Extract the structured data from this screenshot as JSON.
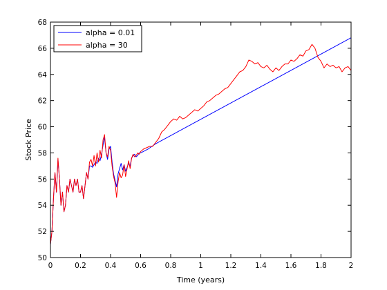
{
  "chart_data": {
    "type": "line",
    "title": "",
    "xlabel": "Time (years)",
    "ylabel": "Stock Price",
    "xlim": [
      0,
      2
    ],
    "ylim": [
      50,
      68
    ],
    "xticks": [
      0,
      0.2,
      0.4,
      0.6,
      0.8,
      1,
      1.2,
      1.4,
      1.6,
      1.8,
      2
    ],
    "xtick_labels": [
      "0",
      "0.2",
      "0.4",
      "0.6",
      "0.8",
      "1",
      "1.2",
      "1.4",
      "1.6",
      "1.8",
      "2"
    ],
    "yticks": [
      50,
      52,
      54,
      56,
      58,
      60,
      62,
      64,
      66,
      68
    ],
    "ytick_labels": [
      "50",
      "52",
      "54",
      "56",
      "58",
      "60",
      "62",
      "64",
      "66",
      "68"
    ],
    "grid": false,
    "legend_position": "top-left",
    "series": [
      {
        "name": "alpha = 0.01",
        "color": "#0000ff",
        "x": [
          0,
          0.005,
          0.01,
          0.02,
          0.03,
          0.04,
          0.05,
          0.06,
          0.07,
          0.08,
          0.09,
          0.1,
          0.11,
          0.12,
          0.13,
          0.14,
          0.15,
          0.16,
          0.17,
          0.18,
          0.19,
          0.2,
          0.21,
          0.22,
          0.23,
          0.24,
          0.25,
          0.26,
          0.27,
          0.28,
          0.29,
          0.3,
          0.31,
          0.32,
          0.33,
          0.34,
          0.35,
          0.36,
          0.37,
          0.38,
          0.39,
          0.4,
          0.41,
          0.42,
          0.43,
          0.44,
          0.45,
          0.46,
          0.47,
          0.48,
          0.49,
          0.5,
          0.51,
          0.52,
          0.53,
          0.54,
          0.55,
          0.56,
          0.57,
          0.58,
          0.59,
          0.6,
          0.65,
          0.7,
          2.0
        ],
        "y": [
          51.0,
          51.5,
          52.0,
          54.5,
          56.5,
          55.0,
          57.5,
          56.0,
          54.0,
          55.0,
          53.5,
          54.0,
          55.5,
          55.0,
          56.0,
          55.5,
          55.0,
          56.0,
          55.5,
          56.0,
          55.0,
          55.0,
          55.5,
          54.5,
          55.5,
          56.5,
          56.0,
          57.0,
          57.0,
          56.9,
          57.1,
          57.3,
          57.2,
          57.6,
          57.4,
          57.9,
          58.6,
          59.2,
          58.0,
          57.5,
          58.3,
          58.5,
          57.3,
          56.4,
          55.9,
          55.4,
          56.4,
          56.8,
          57.2,
          56.7,
          57.1,
          56.6,
          56.9,
          57.2,
          57.0,
          57.6,
          57.8,
          57.9,
          57.7,
          57.8,
          58.0,
          58.0,
          58.3,
          58.7,
          66.8
        ]
      },
      {
        "name": "alpha = 30",
        "color": "#ff0000",
        "x": [
          0,
          0.005,
          0.01,
          0.02,
          0.03,
          0.04,
          0.05,
          0.06,
          0.07,
          0.08,
          0.09,
          0.1,
          0.11,
          0.12,
          0.13,
          0.14,
          0.15,
          0.16,
          0.17,
          0.18,
          0.19,
          0.2,
          0.21,
          0.22,
          0.23,
          0.24,
          0.25,
          0.26,
          0.27,
          0.28,
          0.29,
          0.3,
          0.31,
          0.32,
          0.33,
          0.34,
          0.35,
          0.36,
          0.37,
          0.38,
          0.39,
          0.4,
          0.41,
          0.42,
          0.43,
          0.44,
          0.45,
          0.46,
          0.47,
          0.48,
          0.49,
          0.5,
          0.51,
          0.52,
          0.53,
          0.54,
          0.55,
          0.56,
          0.57,
          0.58,
          0.59,
          0.6,
          0.62,
          0.64,
          0.66,
          0.68,
          0.7,
          0.72,
          0.74,
          0.76,
          0.78,
          0.8,
          0.82,
          0.84,
          0.86,
          0.88,
          0.9,
          0.92,
          0.94,
          0.96,
          0.98,
          1.0,
          1.02,
          1.04,
          1.06,
          1.08,
          1.1,
          1.12,
          1.14,
          1.16,
          1.18,
          1.2,
          1.22,
          1.24,
          1.26,
          1.28,
          1.3,
          1.32,
          1.34,
          1.36,
          1.38,
          1.4,
          1.42,
          1.44,
          1.46,
          1.48,
          1.5,
          1.52,
          1.54,
          1.56,
          1.58,
          1.6,
          1.62,
          1.64,
          1.66,
          1.68,
          1.7,
          1.72,
          1.74,
          1.76,
          1.78,
          1.8,
          1.82,
          1.84,
          1.86,
          1.88,
          1.9,
          1.92,
          1.94,
          1.96,
          1.98,
          2.0
        ],
        "y": [
          51.0,
          51.5,
          52.0,
          54.5,
          56.5,
          55.0,
          57.6,
          56.0,
          54.0,
          55.0,
          53.5,
          54.0,
          55.5,
          55.0,
          56.0,
          55.5,
          55.0,
          56.0,
          55.5,
          56.0,
          55.0,
          55.0,
          55.5,
          54.5,
          55.5,
          56.5,
          56.0,
          57.3,
          57.5,
          57.0,
          57.8,
          57.0,
          58.0,
          57.3,
          58.2,
          57.6,
          59.0,
          59.4,
          58.0,
          57.7,
          58.5,
          58.2,
          57.0,
          56.2,
          55.7,
          54.6,
          55.8,
          56.5,
          56.1,
          56.3,
          57.1,
          56.2,
          56.8,
          57.4,
          56.8,
          57.6,
          57.9,
          57.7,
          57.8,
          58.0,
          57.9,
          58.1,
          58.3,
          58.4,
          58.5,
          58.5,
          58.8,
          59.1,
          59.6,
          59.8,
          60.1,
          60.4,
          60.6,
          60.5,
          60.8,
          60.6,
          60.7,
          60.9,
          61.1,
          61.3,
          61.2,
          61.4,
          61.6,
          61.9,
          62.0,
          62.2,
          62.4,
          62.5,
          62.7,
          62.9,
          63.0,
          63.3,
          63.6,
          63.9,
          64.2,
          64.3,
          64.6,
          65.1,
          65.0,
          64.8,
          64.9,
          64.6,
          64.5,
          64.7,
          64.4,
          64.2,
          64.5,
          64.3,
          64.6,
          64.8,
          64.8,
          65.1,
          65.0,
          65.2,
          65.5,
          65.4,
          65.8,
          65.9,
          66.3,
          66.0,
          65.3,
          65.0,
          64.5,
          64.8,
          64.6,
          64.7,
          64.5,
          64.6,
          64.2,
          64.5,
          64.6,
          64.3
        ]
      }
    ]
  }
}
